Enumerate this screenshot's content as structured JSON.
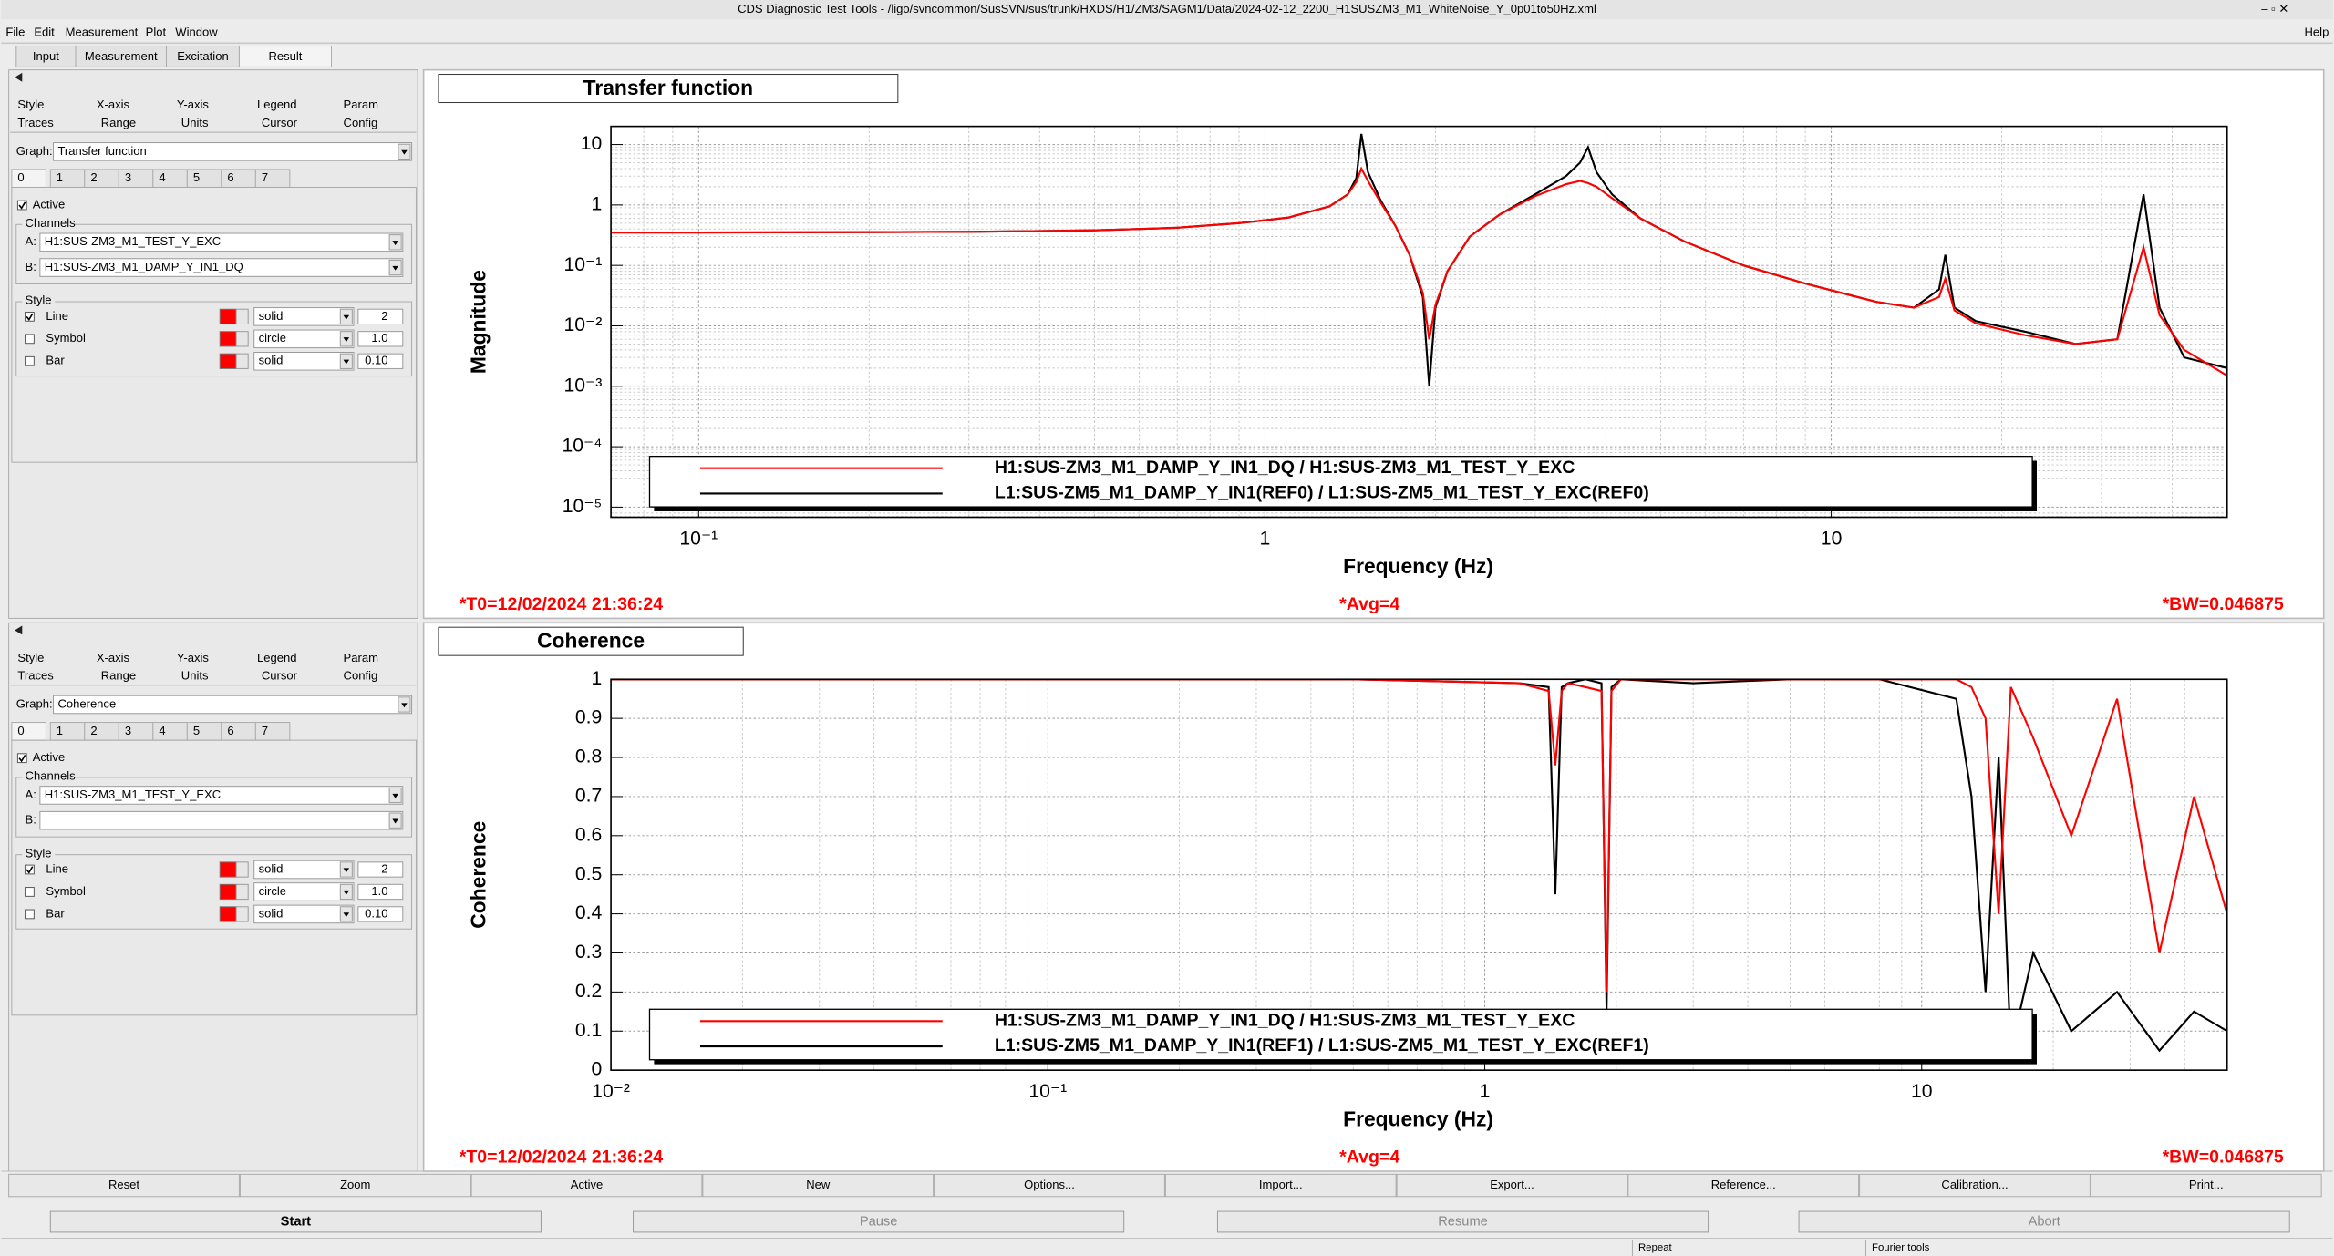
{
  "window": {
    "title": "CDS Diagnostic Test Tools - /ligo/svncommon/SusSVN/sus/trunk/HXDS/H1/ZM3/SAGM1/Data/2024-02-12_2200_H1SUSZM3_M1_WhiteNoise_Y_0p01to50Hz.xml",
    "menu": [
      "File",
      "Edit",
      "Measurement",
      "Plot",
      "Window"
    ],
    "help": "Help"
  },
  "tabs": [
    "Input",
    "Measurement",
    "Excitation",
    "Result"
  ],
  "panels": [
    {
      "option_tabs": [
        [
          "Style",
          "X-axis",
          "Y-axis",
          "Legend",
          "Param"
        ],
        [
          "Traces",
          "Range",
          "Units",
          "Cursor",
          "Config"
        ]
      ],
      "graph_label": "Graph:",
      "graph": "Transfer function",
      "traces": [
        "0",
        "1",
        "2",
        "3",
        "4",
        "5",
        "6",
        "7"
      ],
      "active": {
        "label": "Active",
        "checked": true
      },
      "channels_label": "Channels",
      "channels": [
        {
          "label": "A:",
          "value": "H1:SUS-ZM3_M1_TEST_Y_EXC"
        },
        {
          "label": "B:",
          "value": "H1:SUS-ZM3_M1_DAMP_Y_IN1_DQ"
        }
      ],
      "style_label": "Style",
      "styles": [
        {
          "name": "Line",
          "checked": true,
          "pattern": "solid",
          "size": "2"
        },
        {
          "name": "Symbol",
          "checked": false,
          "pattern": "circle",
          "size": "1.0"
        },
        {
          "name": "Bar",
          "checked": false,
          "pattern": "solid",
          "size": "0.10"
        }
      ]
    },
    {
      "option_tabs": [
        [
          "Style",
          "X-axis",
          "Y-axis",
          "Legend",
          "Param"
        ],
        [
          "Traces",
          "Range",
          "Units",
          "Cursor",
          "Config"
        ]
      ],
      "graph_label": "Graph:",
      "graph": "Coherence",
      "traces": [
        "0",
        "1",
        "2",
        "3",
        "4",
        "5",
        "6",
        "7"
      ],
      "active": {
        "label": "Active",
        "checked": true
      },
      "channels_label": "Channels",
      "channels": [
        {
          "label": "A:",
          "value": "H1:SUS-ZM3_M1_TEST_Y_EXC"
        },
        {
          "label": "B:"
        }
      ],
      "style_label": "Style",
      "styles": [
        {
          "name": "Line",
          "checked": true,
          "pattern": "solid",
          "size": "2"
        },
        {
          "name": "Symbol",
          "checked": false,
          "pattern": "circle",
          "size": "1.0"
        },
        {
          "name": "Bar",
          "checked": false,
          "pattern": "solid",
          "size": "0.10"
        }
      ]
    }
  ],
  "chart_data": [
    {
      "type": "line",
      "title": "Transfer function",
      "xlabel": "Frequency (Hz)",
      "ylabel": "Magnitude",
      "xscale": "log",
      "yscale": "log",
      "grid": true,
      "xlim": [
        0.07,
        50
      ],
      "ylim": [
        6.8e-06,
        20
      ],
      "xticks": [
        {
          "value": 0.1,
          "label": "10⁻¹"
        },
        1,
        10
      ],
      "yticks": [
        10,
        1,
        {
          "value": 0.1,
          "label": "10⁻¹"
        },
        {
          "value": 0.01,
          "label": "10⁻²"
        },
        {
          "value": 0.001,
          "label": "10⁻³"
        },
        {
          "value": 0.0001,
          "label": "10⁻⁴"
        },
        {
          "value": 1e-05,
          "label": "10⁻⁵"
        }
      ],
      "x": [
        0.07,
        0.1,
        0.2,
        0.3,
        0.5,
        0.7,
        0.9,
        1.1,
        1.3,
        1.4,
        1.45,
        1.48,
        1.52,
        1.6,
        1.7,
        1.8,
        1.9,
        1.95,
        2.0,
        2.1,
        2.3,
        2.6,
        3.0,
        3.4,
        3.6,
        3.72,
        3.85,
        4.1,
        4.6,
        5.5,
        7,
        9,
        12,
        14,
        15.5,
        15.9,
        16.5,
        18,
        22,
        27,
        32,
        35.6,
        38,
        42,
        50
      ],
      "series": [
        {
          "name": "H1:SUS-ZM3_M1_DAMP_Y_IN1_DQ / H1:SUS-ZM3_M1_TEST_Y_EXC",
          "color": "#ff0000",
          "values": [
            0.35,
            0.35,
            0.355,
            0.36,
            0.38,
            0.42,
            0.5,
            0.62,
            0.95,
            1.5,
            2.4,
            4,
            2.5,
            1.1,
            0.45,
            0.15,
            0.035,
            0.006,
            0.022,
            0.08,
            0.3,
            0.7,
            1.4,
            2.2,
            2.5,
            2.3,
            2.0,
            1.3,
            0.6,
            0.25,
            0.1,
            0.05,
            0.025,
            0.02,
            0.03,
            0.06,
            0.018,
            0.011,
            0.007,
            0.005,
            0.006,
            0.2,
            0.015,
            0.004,
            0.0015
          ]
        },
        {
          "name": "L1:SUS-ZM5_M1_DAMP_Y_IN1(REF0) / L1:SUS-ZM5_M1_TEST_Y_EXC(REF0)",
          "color": "#000000",
          "values": [
            0.35,
            0.35,
            0.355,
            0.36,
            0.38,
            0.42,
            0.5,
            0.62,
            0.95,
            1.5,
            2.8,
            15,
            3.5,
            1.2,
            0.45,
            0.15,
            0.03,
            0.001,
            0.02,
            0.08,
            0.3,
            0.7,
            1.5,
            3,
            5,
            9,
            3.5,
            1.5,
            0.6,
            0.25,
            0.1,
            0.05,
            0.025,
            0.02,
            0.04,
            0.15,
            0.02,
            0.012,
            0.008,
            0.005,
            0.006,
            1.5,
            0.02,
            0.003,
            0.002
          ]
        }
      ],
      "annotations": [
        "*T0=12/02/2024 21:36:24",
        "*Avg=4",
        "*BW=0.046875"
      ]
    },
    {
      "type": "line",
      "title": "Coherence",
      "xlabel": "Frequency (Hz)",
      "ylabel": "Coherence",
      "xscale": "log",
      "yscale": "linear",
      "grid": true,
      "xlim": [
        0.01,
        50
      ],
      "ylim": [
        0,
        1
      ],
      "xticks": [
        {
          "value": 0.01,
          "label": "10⁻²"
        },
        {
          "value": 0.1,
          "label": "10⁻¹"
        },
        1,
        10
      ],
      "yticks": [
        0,
        0.1,
        0.2,
        0.3,
        0.4,
        0.5,
        0.6,
        0.7,
        0.8,
        0.9,
        1
      ],
      "x": [
        0.01,
        0.03,
        0.1,
        0.5,
        1.2,
        1.4,
        1.45,
        1.5,
        1.55,
        1.7,
        1.85,
        1.9,
        1.95,
        2.05,
        3,
        5,
        8,
        12,
        13,
        14,
        15,
        16,
        18,
        22,
        28,
        35,
        42,
        50
      ],
      "series": [
        {
          "name": "H1:SUS-ZM3_M1_DAMP_Y_IN1_DQ / H1:SUS-ZM3_M1_TEST_Y_EXC",
          "color": "#ff0000",
          "values": [
            1,
            1,
            1,
            1,
            0.99,
            0.97,
            0.78,
            0.97,
            0.99,
            0.98,
            0.97,
            0.2,
            0.97,
            1,
            1,
            1,
            1,
            1,
            0.98,
            0.9,
            0.4,
            0.98,
            0.85,
            0.6,
            0.95,
            0.3,
            0.7,
            0.4
          ]
        },
        {
          "name": "L1:SUS-ZM5_M1_DAMP_Y_IN1(REF1) / L1:SUS-ZM5_M1_TEST_Y_EXC(REF1)",
          "color": "#000000",
          "values": [
            1,
            1,
            1,
            1,
            0.99,
            0.98,
            0.45,
            0.98,
            0.99,
            1,
            0.99,
            0.15,
            0.98,
            1,
            0.99,
            1,
            1,
            0.95,
            0.7,
            0.2,
            0.8,
            0.05,
            0.3,
            0.1,
            0.2,
            0.05,
            0.15,
            0.1
          ]
        }
      ],
      "annotations": [
        "*T0=12/02/2024 21:36:24",
        "*Avg=4",
        "*BW=0.046875"
      ]
    }
  ],
  "buttons": [
    "Reset",
    "Zoom",
    "Active",
    "New",
    "Options...",
    "Import...",
    "Export...",
    "Reference...",
    "Calibration...",
    "Print..."
  ],
  "controls": [
    "Start",
    "Pause",
    "Resume",
    "Abort"
  ],
  "status": [
    "Repeat",
    "Fourier tools"
  ]
}
